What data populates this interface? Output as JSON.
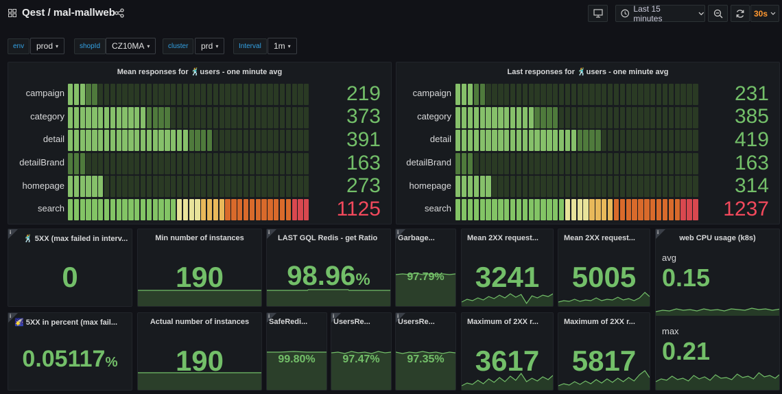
{
  "header": {
    "title": "Qest / mal-mallweb",
    "time_range": "Last 15 minutes",
    "refresh_interval": "30s"
  },
  "variables": [
    {
      "label": "env",
      "value": "prod"
    },
    {
      "label": "shopId",
      "value": "CZ10MA"
    },
    {
      "label": "cluster",
      "value": "prd"
    },
    {
      "label": "Interval",
      "value": "1m"
    }
  ],
  "heatmaps": [
    {
      "title": "Mean responses for 🕺users - one minute avg",
      "rows": [
        {
          "name": "campaign",
          "value": "219",
          "color": "green",
          "cells": [
            3,
            3,
            3,
            2,
            2,
            1,
            1,
            1,
            1,
            1,
            1,
            1,
            1,
            1,
            1,
            1,
            1,
            1,
            1,
            1,
            1,
            1,
            1,
            1,
            1,
            1,
            1,
            1,
            1,
            1,
            1,
            1,
            1,
            1,
            1,
            1,
            1,
            1,
            1,
            1
          ]
        },
        {
          "name": "category",
          "value": "373",
          "color": "green",
          "cells": [
            3,
            3,
            3,
            3,
            3,
            3,
            3,
            3,
            3,
            3,
            3,
            3,
            3,
            2,
            2,
            2,
            2,
            1,
            1,
            1,
            1,
            1,
            1,
            1,
            1,
            1,
            1,
            1,
            1,
            1,
            1,
            1,
            1,
            1,
            1,
            1,
            1,
            1,
            1,
            1
          ]
        },
        {
          "name": "detail",
          "value": "391",
          "color": "green",
          "cells": [
            3,
            3,
            3,
            3,
            3,
            3,
            3,
            3,
            3,
            3,
            3,
            3,
            3,
            3,
            3,
            3,
            3,
            3,
            3,
            3,
            2,
            2,
            2,
            2,
            1,
            1,
            1,
            1,
            1,
            1,
            1,
            1,
            1,
            1,
            1,
            1,
            1,
            1,
            1,
            1
          ]
        },
        {
          "name": "detailBrand",
          "value": "163",
          "color": "green",
          "cells": [
            2,
            2,
            2,
            1,
            1,
            1,
            1,
            1,
            1,
            1,
            1,
            1,
            1,
            1,
            1,
            1,
            1,
            1,
            1,
            1,
            1,
            1,
            1,
            1,
            1,
            1,
            1,
            1,
            1,
            1,
            1,
            1,
            1,
            1,
            1,
            1,
            1,
            1,
            1,
            1
          ]
        },
        {
          "name": "homepage",
          "value": "273",
          "color": "green",
          "cells": [
            3,
            3,
            3,
            3,
            3,
            3,
            1,
            1,
            1,
            1,
            1,
            1,
            1,
            1,
            1,
            1,
            1,
            1,
            1,
            1,
            1,
            1,
            1,
            1,
            1,
            1,
            1,
            1,
            1,
            1,
            1,
            1,
            1,
            1,
            1,
            1,
            1,
            1,
            1,
            1
          ]
        },
        {
          "name": "search",
          "value": "1125",
          "color": "red",
          "cells": [
            4,
            4,
            4,
            4,
            4,
            4,
            4,
            4,
            4,
            4,
            4,
            4,
            4,
            4,
            4,
            4,
            4,
            4,
            5,
            5,
            5,
            5,
            6,
            6,
            6,
            6,
            7,
            7,
            7,
            7,
            7,
            7,
            7,
            7,
            7,
            7,
            7,
            8,
            8,
            8
          ]
        }
      ]
    },
    {
      "title": "Last responses for 🕺users - one minute avg",
      "rows": [
        {
          "name": "campaign",
          "value": "231",
          "color": "green",
          "cells": [
            3,
            3,
            3,
            2,
            2,
            1,
            1,
            1,
            1,
            1,
            1,
            1,
            1,
            1,
            1,
            1,
            1,
            1,
            1,
            1,
            1,
            1,
            1,
            1,
            1,
            1,
            1,
            1,
            1,
            1,
            1,
            1,
            1,
            1,
            1,
            1,
            1,
            1,
            1,
            1
          ]
        },
        {
          "name": "category",
          "value": "385",
          "color": "green",
          "cells": [
            3,
            3,
            3,
            3,
            3,
            3,
            3,
            3,
            3,
            3,
            3,
            3,
            3,
            2,
            2,
            2,
            2,
            1,
            1,
            1,
            1,
            1,
            1,
            1,
            1,
            1,
            1,
            1,
            1,
            1,
            1,
            1,
            1,
            1,
            1,
            1,
            1,
            1,
            1,
            1
          ]
        },
        {
          "name": "detail",
          "value": "419",
          "color": "green",
          "cells": [
            3,
            3,
            3,
            3,
            3,
            3,
            3,
            3,
            3,
            3,
            3,
            3,
            3,
            3,
            3,
            3,
            3,
            3,
            3,
            3,
            2,
            2,
            2,
            2,
            1,
            1,
            1,
            1,
            1,
            1,
            1,
            1,
            1,
            1,
            1,
            1,
            1,
            1,
            1,
            1
          ]
        },
        {
          "name": "detailBrand",
          "value": "163",
          "color": "green",
          "cells": [
            2,
            2,
            2,
            1,
            1,
            1,
            1,
            1,
            1,
            1,
            1,
            1,
            1,
            1,
            1,
            1,
            1,
            1,
            1,
            1,
            1,
            1,
            1,
            1,
            1,
            1,
            1,
            1,
            1,
            1,
            1,
            1,
            1,
            1,
            1,
            1,
            1,
            1,
            1,
            1
          ]
        },
        {
          "name": "homepage",
          "value": "314",
          "color": "green",
          "cells": [
            3,
            3,
            3,
            3,
            3,
            3,
            1,
            1,
            1,
            1,
            1,
            1,
            1,
            1,
            1,
            1,
            1,
            1,
            1,
            1,
            1,
            1,
            1,
            1,
            1,
            1,
            1,
            1,
            1,
            1,
            1,
            1,
            1,
            1,
            1,
            1,
            1,
            1,
            1,
            1
          ]
        },
        {
          "name": "search",
          "value": "1237",
          "color": "red",
          "cells": [
            4,
            4,
            4,
            4,
            4,
            4,
            4,
            4,
            4,
            4,
            4,
            4,
            4,
            4,
            4,
            4,
            4,
            4,
            5,
            5,
            5,
            5,
            6,
            6,
            6,
            6,
            7,
            7,
            7,
            7,
            7,
            7,
            7,
            7,
            7,
            7,
            7,
            8,
            8,
            8
          ]
        }
      ]
    }
  ],
  "stats": {
    "s5xx_max": {
      "title": "🕺 5XX (max failed in interv...",
      "value": "0"
    },
    "min_instances": {
      "title": "Min number of instances",
      "value": "190"
    },
    "gql_redis": {
      "title": "LAST GQL Redis - get Ratio",
      "value": "98.96",
      "unit": "%"
    },
    "garbage": {
      "title": "Garbage...",
      "value": "97.79%"
    },
    "mean2xx_a": {
      "title": "Mean 2XX request...",
      "value": "3241"
    },
    "mean2xx_b": {
      "title": "Mean 2XX request...",
      "value": "5005"
    },
    "cpu": {
      "title": "web CPU usage (k8s)",
      "avg_label": "avg",
      "avg_value": "0.15",
      "max_label": "max",
      "max_value": "0.21"
    },
    "s5xx_pct": {
      "title": "🌠 5XX in percent (max fail...",
      "value": "0.05117",
      "unit": "%"
    },
    "actual_instances": {
      "title": "Actual number of instances",
      "value": "190"
    },
    "safe_redis": {
      "title": "SafeRedi...",
      "value": "99.80%"
    },
    "users_re_a": {
      "title": "UsersRe...",
      "value": "97.47%"
    },
    "users_re_b": {
      "title": "UsersRe...",
      "value": "97.35%"
    },
    "max2xx_a": {
      "title": "Maximum of 2XX r...",
      "value": "3617"
    },
    "max2xx_b": {
      "title": "Maximum of 2XX r...",
      "value": "5817"
    }
  },
  "colors": {
    "green": "#73bf69",
    "red": "#f2495c",
    "panel_bg": "#181b1f",
    "variable_label": "#33a2e5",
    "refresh_accent": "#ff9830"
  }
}
